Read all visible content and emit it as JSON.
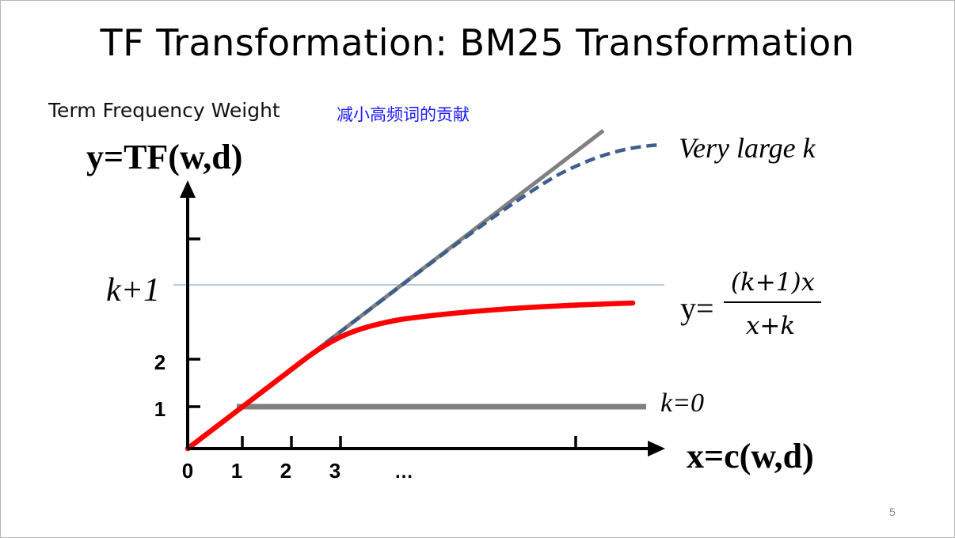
{
  "slide": {
    "title": "TF Transformation: BM25 Transformation",
    "subtitle": "Term Frequency Weight",
    "note": "减小高频词的贡献",
    "page_number": "5"
  },
  "chart_data": {
    "type": "line",
    "ylabel": "y=TF(w,d)",
    "xlabel": "x=c(w,d)",
    "x_ticks": [
      "0",
      "1",
      "2",
      "3",
      "…"
    ],
    "y_ticks": [
      "1",
      "2"
    ],
    "k_plus_1_label": "k+1",
    "formula": {
      "prefix": "y=",
      "numerator": "(k+1)x",
      "denominator": "x+k"
    },
    "series": [
      {
        "name": "Very large k",
        "style": "dashed",
        "color": "#3d5f8a"
      },
      {
        "name": "k=0",
        "style": "solid",
        "color": "#808080"
      }
    ],
    "colors": {
      "bm25_curve": "#ff0000",
      "identity_line": "#808080",
      "reference_line": "#8ea9c8"
    }
  }
}
